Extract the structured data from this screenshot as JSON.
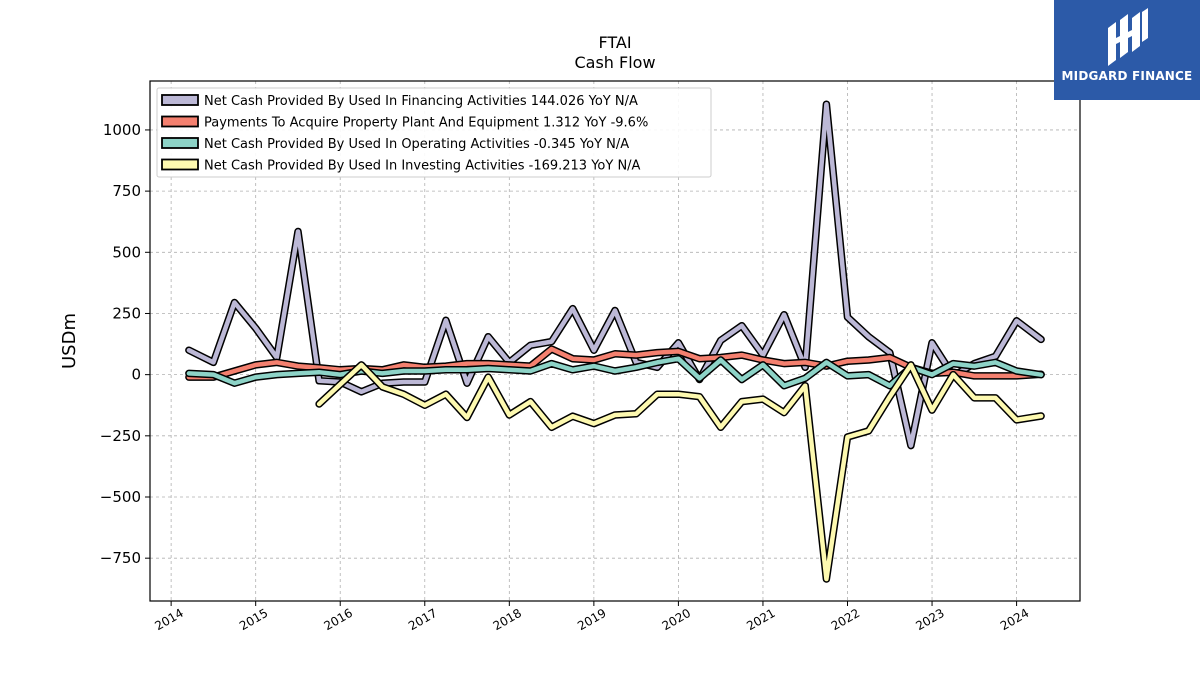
{
  "brand": {
    "name": "MIDGARD FINANCE",
    "bg_color": "#2c5aa8",
    "icon": "midgard-m-logo-icon"
  },
  "chart_data": {
    "type": "line",
    "title": "FTAI",
    "subtitle": "Cash Flow",
    "xlabel": "",
    "ylabel": "USDm",
    "xlim": [
      2013.75,
      2024.75
    ],
    "ylim": [
      -925,
      1200
    ],
    "x_ticks": [
      2014,
      2015,
      2016,
      2017,
      2018,
      2019,
      2020,
      2021,
      2022,
      2023,
      2024
    ],
    "y_ticks": [
      -750,
      -500,
      -250,
      0,
      250,
      500,
      750,
      1000
    ],
    "y_tick_labels": [
      "−750",
      "−500",
      "−250",
      "0",
      "250",
      "500",
      "750",
      "1000"
    ],
    "grid": true,
    "legend_position": "top-left",
    "series": [
      {
        "name": "Net Cash Provided By Used In Financing Activities  144.026 YoY N/A",
        "color": "#bcb8d6",
        "points": [
          [
            2014.21,
            100
          ],
          [
            2014.5,
            50
          ],
          [
            2014.75,
            295
          ],
          [
            2015.0,
            190
          ],
          [
            2015.25,
            70
          ],
          [
            2015.5,
            585
          ],
          [
            2015.75,
            -25
          ],
          [
            2016.0,
            -30
          ],
          [
            2016.25,
            -70
          ],
          [
            2016.5,
            -35
          ],
          [
            2016.75,
            -30
          ],
          [
            2017.0,
            -30
          ],
          [
            2017.25,
            222
          ],
          [
            2017.5,
            -35
          ],
          [
            2017.75,
            155
          ],
          [
            2018.0,
            50
          ],
          [
            2018.25,
            120
          ],
          [
            2018.5,
            135
          ],
          [
            2018.75,
            270
          ],
          [
            2019.0,
            100
          ],
          [
            2019.25,
            262
          ],
          [
            2019.5,
            50
          ],
          [
            2019.75,
            30
          ],
          [
            2020.0,
            130
          ],
          [
            2020.25,
            -20
          ],
          [
            2020.5,
            140
          ],
          [
            2020.75,
            200
          ],
          [
            2021.0,
            80
          ],
          [
            2021.25,
            245
          ],
          [
            2021.5,
            30
          ],
          [
            2021.75,
            1105
          ],
          [
            2022.0,
            235
          ],
          [
            2022.25,
            155
          ],
          [
            2022.5,
            90
          ],
          [
            2022.75,
            -290
          ],
          [
            2023.0,
            130
          ],
          [
            2023.25,
            -5
          ],
          [
            2023.5,
            45
          ],
          [
            2023.75,
            75
          ],
          [
            2024.0,
            220
          ],
          [
            2024.29,
            144
          ]
        ]
      },
      {
        "name": "Payments To Acquire Property Plant And Equipment  1.312 YoY -9.6%",
        "color": "#f4806f",
        "points": [
          [
            2014.21,
            -10
          ],
          [
            2014.5,
            -10
          ],
          [
            2014.75,
            15
          ],
          [
            2015.0,
            40
          ],
          [
            2015.25,
            50
          ],
          [
            2015.5,
            35
          ],
          [
            2015.75,
            28
          ],
          [
            2016.0,
            20
          ],
          [
            2016.25,
            25
          ],
          [
            2016.5,
            20
          ],
          [
            2016.75,
            40
          ],
          [
            2017.0,
            30
          ],
          [
            2017.25,
            35
          ],
          [
            2017.5,
            45
          ],
          [
            2017.75,
            45
          ],
          [
            2018.0,
            40
          ],
          [
            2018.25,
            35
          ],
          [
            2018.5,
            105
          ],
          [
            2018.75,
            65
          ],
          [
            2019.0,
            60
          ],
          [
            2019.25,
            85
          ],
          [
            2019.5,
            80
          ],
          [
            2019.75,
            90
          ],
          [
            2020.0,
            95
          ],
          [
            2020.25,
            65
          ],
          [
            2020.5,
            70
          ],
          [
            2020.75,
            80
          ],
          [
            2021.0,
            60
          ],
          [
            2021.25,
            45
          ],
          [
            2021.5,
            50
          ],
          [
            2021.75,
            35
          ],
          [
            2022.0,
            55
          ],
          [
            2022.25,
            60
          ],
          [
            2022.5,
            70
          ],
          [
            2022.75,
            30
          ],
          [
            2023.0,
            5
          ],
          [
            2023.25,
            10
          ],
          [
            2023.5,
            -5
          ],
          [
            2023.75,
            -5
          ],
          [
            2024.0,
            -5
          ],
          [
            2024.29,
            1.3
          ]
        ]
      },
      {
        "name": "Net Cash Provided By Used In Operating Activities  -0.345 YoY N/A",
        "color": "#8dd3c7",
        "points": [
          [
            2014.21,
            5
          ],
          [
            2014.5,
            0
          ],
          [
            2014.75,
            -35
          ],
          [
            2015.0,
            -10
          ],
          [
            2015.25,
            0
          ],
          [
            2015.5,
            5
          ],
          [
            2015.75,
            10
          ],
          [
            2016.0,
            0
          ],
          [
            2016.25,
            15
          ],
          [
            2016.5,
            5
          ],
          [
            2016.75,
            15
          ],
          [
            2017.0,
            15
          ],
          [
            2017.25,
            20
          ],
          [
            2017.5,
            20
          ],
          [
            2017.75,
            25
          ],
          [
            2018.0,
            20
          ],
          [
            2018.25,
            15
          ],
          [
            2018.5,
            45
          ],
          [
            2018.75,
            20
          ],
          [
            2019.0,
            35
          ],
          [
            2019.25,
            15
          ],
          [
            2019.5,
            30
          ],
          [
            2019.75,
            50
          ],
          [
            2020.0,
            65
          ],
          [
            2020.25,
            -15
          ],
          [
            2020.5,
            60
          ],
          [
            2020.75,
            -20
          ],
          [
            2021.0,
            40
          ],
          [
            2021.25,
            -45
          ],
          [
            2021.5,
            -15
          ],
          [
            2021.75,
            50
          ],
          [
            2022.0,
            -5
          ],
          [
            2022.25,
            0
          ],
          [
            2022.5,
            -45
          ],
          [
            2022.75,
            30
          ],
          [
            2023.0,
            0
          ],
          [
            2023.25,
            45
          ],
          [
            2023.5,
            35
          ],
          [
            2023.75,
            50
          ],
          [
            2024.0,
            15
          ],
          [
            2024.29,
            -0.3
          ]
        ]
      },
      {
        "name": "Net Cash Provided By Used In Investing Activities  -169.213 YoY N/A",
        "color": "#fdf9b0",
        "points": [
          [
            2015.75,
            -120
          ],
          [
            2016.0,
            -40
          ],
          [
            2016.25,
            40
          ],
          [
            2016.5,
            -50
          ],
          [
            2016.75,
            -80
          ],
          [
            2017.0,
            -125
          ],
          [
            2017.25,
            -80
          ],
          [
            2017.5,
            -175
          ],
          [
            2017.75,
            -10
          ],
          [
            2018.0,
            -165
          ],
          [
            2018.25,
            -110
          ],
          [
            2018.5,
            -215
          ],
          [
            2018.75,
            -170
          ],
          [
            2019.0,
            -200
          ],
          [
            2019.25,
            -165
          ],
          [
            2019.5,
            -160
          ],
          [
            2019.75,
            -80
          ],
          [
            2020.0,
            -80
          ],
          [
            2020.25,
            -90
          ],
          [
            2020.5,
            -215
          ],
          [
            2020.75,
            -110
          ],
          [
            2021.0,
            -100
          ],
          [
            2021.25,
            -155
          ],
          [
            2021.5,
            -45
          ],
          [
            2021.75,
            -835
          ],
          [
            2022.0,
            -255
          ],
          [
            2022.25,
            -230
          ],
          [
            2022.5,
            -90
          ],
          [
            2022.75,
            40
          ],
          [
            2023.0,
            -145
          ],
          [
            2023.25,
            0
          ],
          [
            2023.5,
            -95
          ],
          [
            2023.75,
            -95
          ],
          [
            2024.0,
            -185
          ],
          [
            2024.29,
            -169
          ]
        ]
      }
    ]
  }
}
